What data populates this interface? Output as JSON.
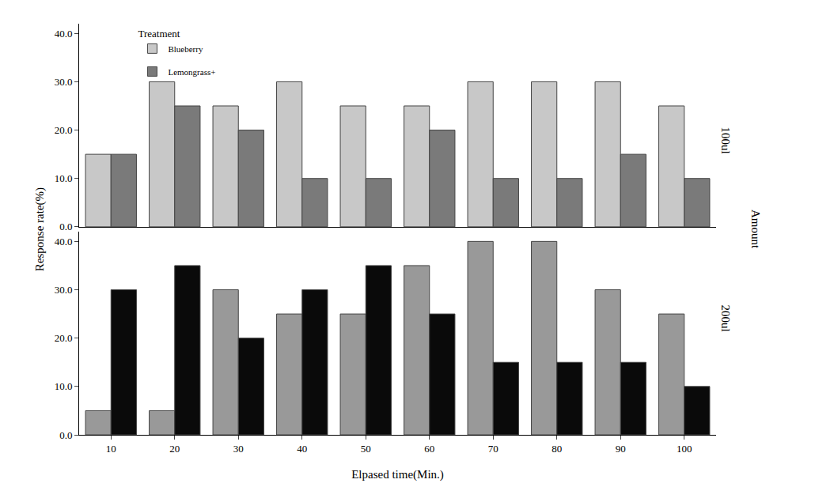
{
  "chart_data": {
    "type": "bar",
    "x_label": "Elpased time(Min.)",
    "y_label": "Response rate(%)",
    "legend_title": "Treatment",
    "legend": "upper left",
    "facet_title": "Amount",
    "categories": [
      10,
      20,
      30,
      40,
      50,
      60,
      70,
      80,
      90,
      100
    ],
    "ylim": [
      0,
      42
    ],
    "yticks": [
      {
        "value": 0,
        "label": "0.0"
      },
      {
        "value": 10,
        "label": "10.0"
      },
      {
        "value": 20,
        "label": "20.0"
      },
      {
        "value": 30,
        "label": "30.0"
      },
      {
        "value": 40,
        "label": "40.0"
      }
    ],
    "grid": false,
    "panels": [
      {
        "label": "100ul",
        "series": [
          {
            "name": "Blueberry",
            "color": "#c8c8c8",
            "values": [
              15,
              30,
              25,
              30,
              25,
              25,
              30,
              30,
              30,
              25
            ]
          },
          {
            "name": "Lemongrass+",
            "color": "#7a7a7a",
            "values": [
              15,
              25,
              20,
              10,
              10,
              20,
              10,
              10,
              15,
              10
            ]
          }
        ]
      },
      {
        "label": "200ul",
        "series": [
          {
            "name": "Blueberry",
            "color": "#999999",
            "values": [
              5,
              5,
              30,
              25,
              25,
              35,
              40,
              40,
              30,
              25
            ]
          },
          {
            "name": "Lemongrass+",
            "color": "#0a0a0a",
            "values": [
              30,
              35,
              20,
              30,
              35,
              25,
              15,
              15,
              15,
              10
            ]
          }
        ]
      }
    ]
  }
}
